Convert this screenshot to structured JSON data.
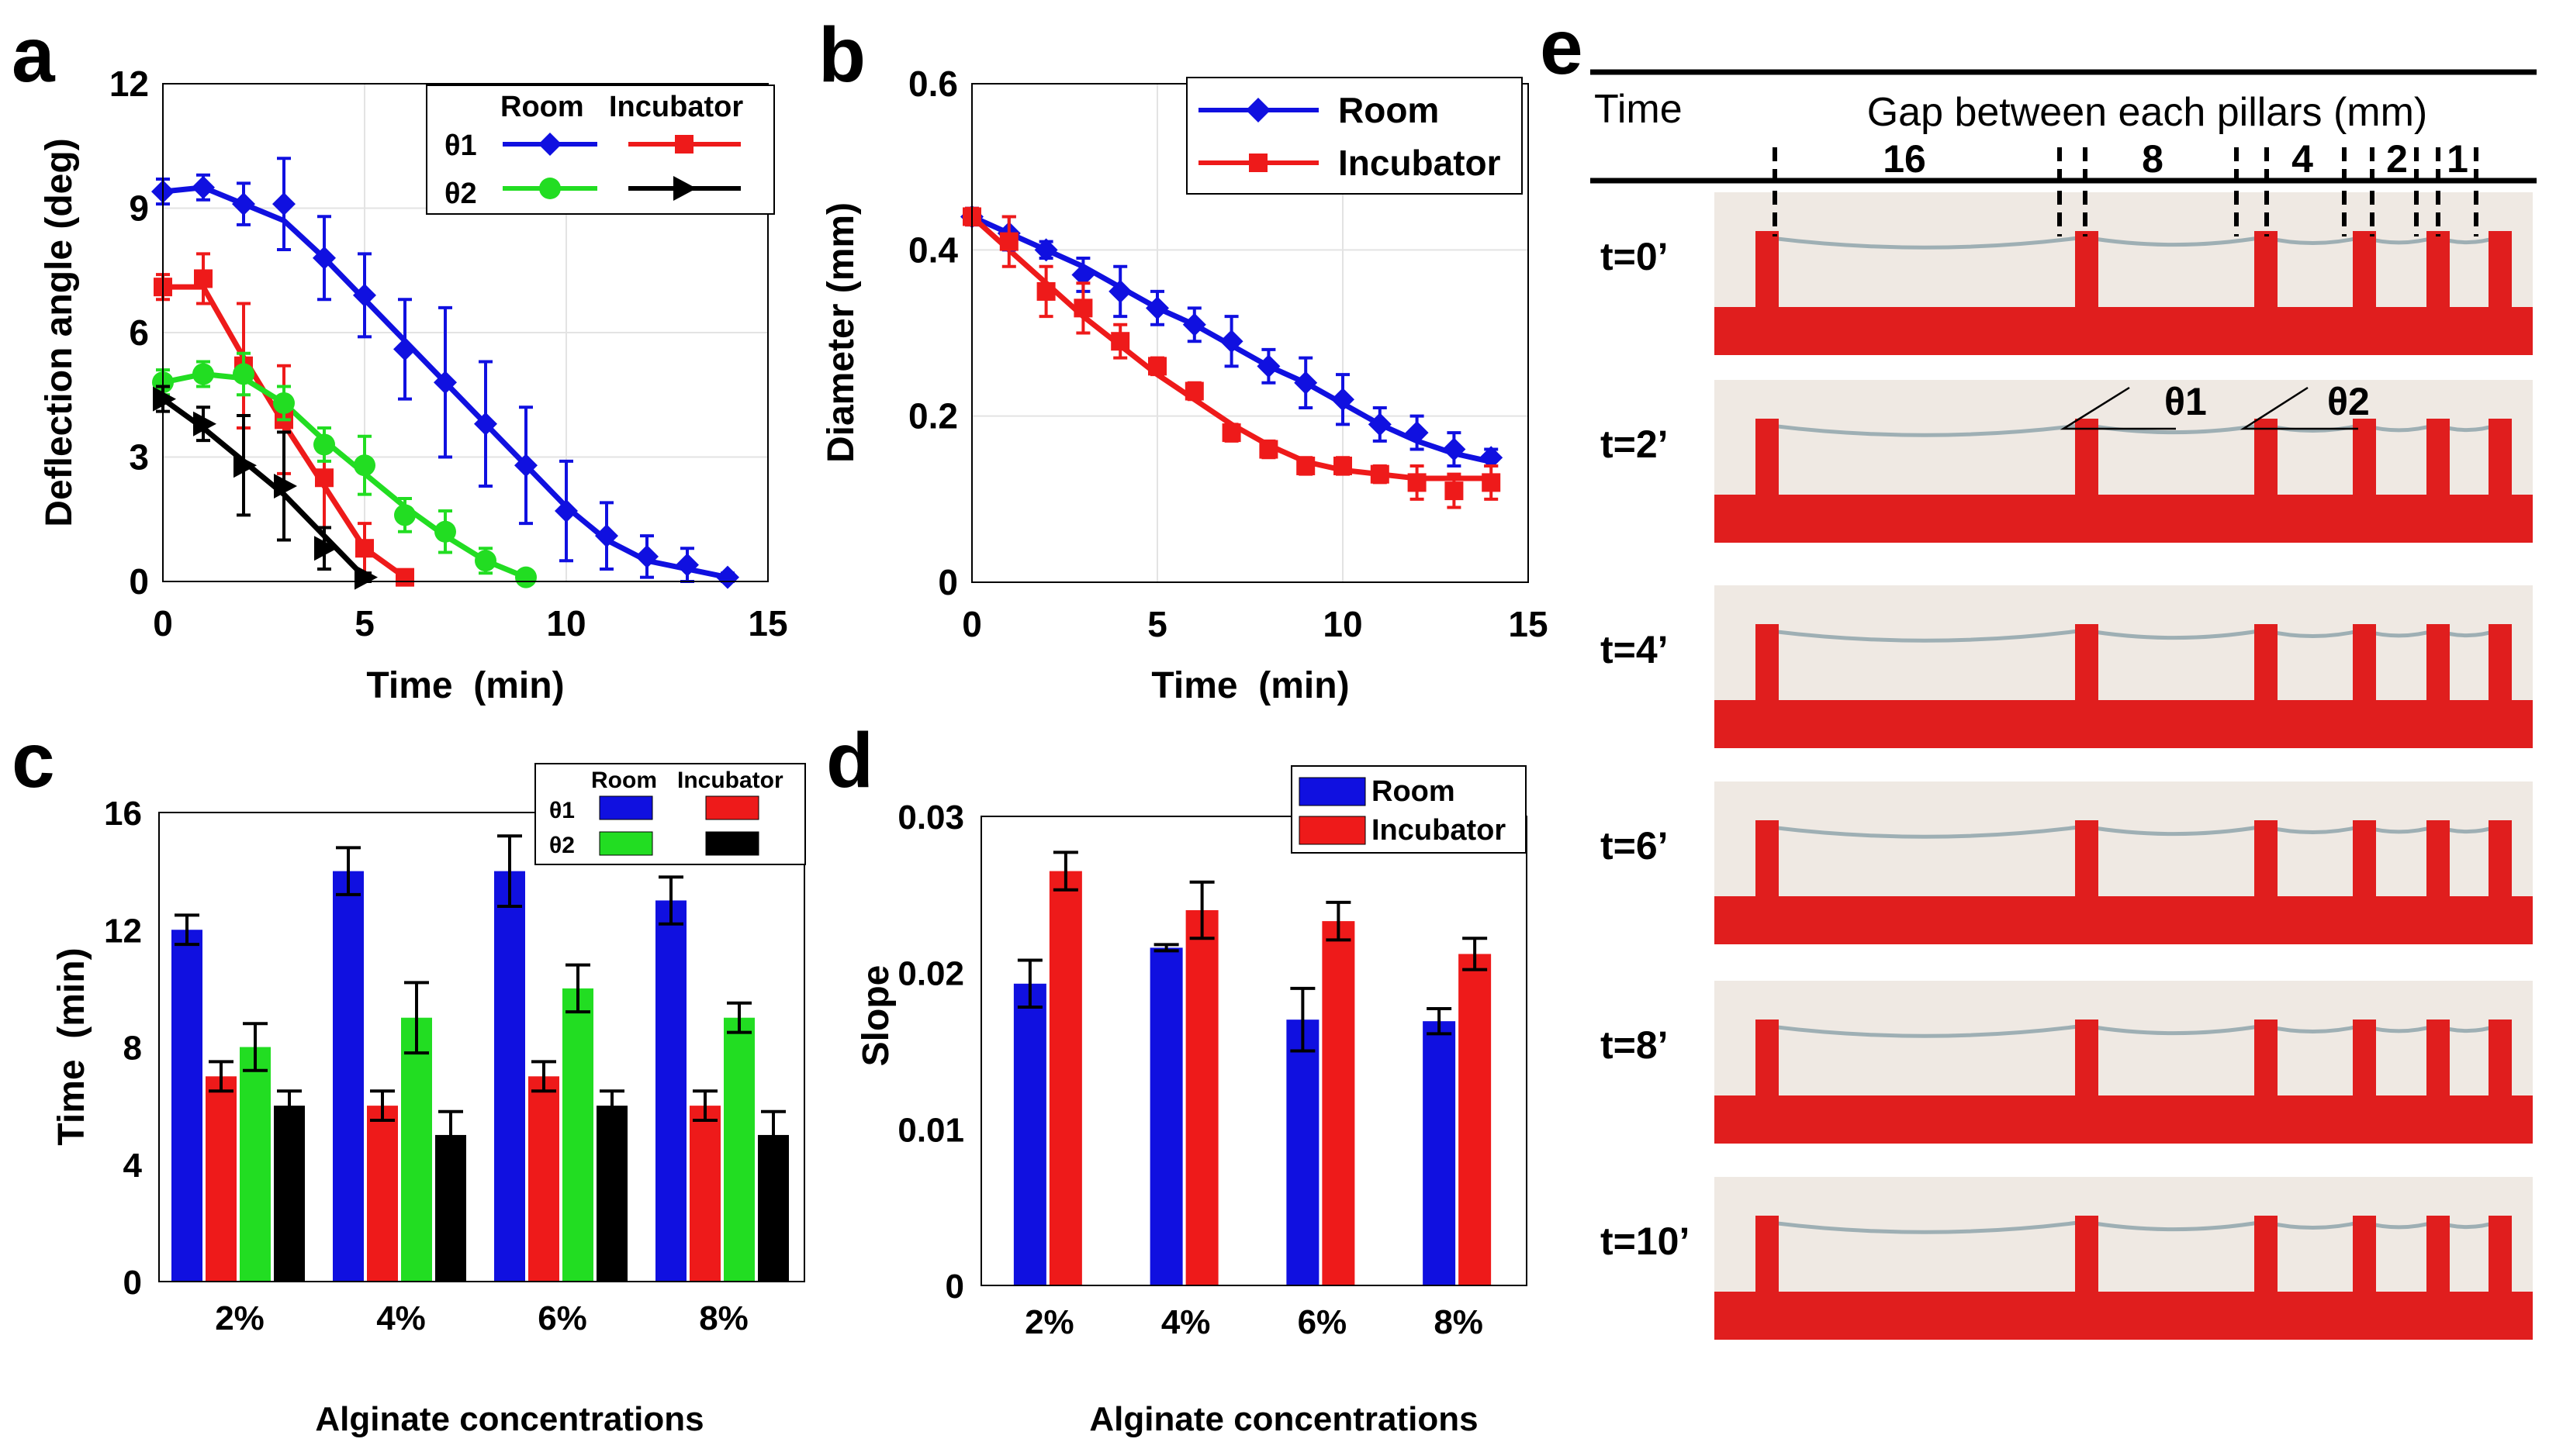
{
  "panel_letters": {
    "a": "a",
    "b": "b",
    "c": "c",
    "d": "d",
    "e": "e"
  },
  "colors": {
    "blue": "#1010e0",
    "red": "#ee1a1a",
    "green": "#22dd22",
    "black": "#000000",
    "pillar": "#e01e1e",
    "photo_bg": "#efe9e3",
    "grid": "#e3e3e3"
  },
  "chart_data": [
    {
      "id": "a",
      "type": "line",
      "ylabel": "Deflection angle (deg)",
      "xlabel": "Time  (min)",
      "xlim": [
        0,
        15
      ],
      "ylim": [
        0,
        12
      ],
      "xticks": [
        "0",
        "5",
        "10",
        "15"
      ],
      "yticks": [
        "0",
        "3",
        "6",
        "9",
        "12"
      ],
      "legend": {
        "col_room": "Room",
        "col_incubator": "Incubator",
        "row_theta1": "θ1",
        "row_theta2": "θ2"
      },
      "series": [
        {
          "name": "θ1 Room",
          "color": "blue",
          "marker": "diamond",
          "x": [
            0,
            1,
            2,
            3,
            4,
            5,
            6,
            7,
            8,
            9,
            10,
            11,
            12,
            13,
            14
          ],
          "y": [
            9.4,
            9.5,
            9.1,
            9.1,
            7.8,
            6.9,
            5.6,
            4.8,
            3.8,
            2.8,
            1.7,
            1.1,
            0.6,
            0.4,
            0.1
          ],
          "err": [
            0.3,
            0.3,
            0.5,
            1.1,
            1.0,
            1.0,
            1.2,
            1.8,
            1.5,
            1.4,
            1.2,
            0.8,
            0.5,
            0.4,
            0.1
          ]
        },
        {
          "name": "θ1 Incubator",
          "color": "red",
          "marker": "square",
          "x": [
            0,
            1,
            2,
            3,
            4,
            5,
            6
          ],
          "y": [
            7.1,
            7.3,
            5.2,
            3.9,
            2.5,
            0.8,
            0.1
          ],
          "err": [
            0.3,
            0.6,
            1.5,
            1.3,
            1.2,
            0.6,
            0.1
          ]
        },
        {
          "name": "θ2 Room",
          "color": "green",
          "marker": "circle",
          "x": [
            0,
            1,
            2,
            3,
            4,
            5,
            6,
            7,
            8,
            9
          ],
          "y": [
            4.8,
            5.0,
            5.0,
            4.3,
            3.3,
            2.8,
            1.6,
            1.2,
            0.5,
            0.1
          ],
          "err": [
            0.3,
            0.3,
            0.5,
            0.4,
            0.4,
            0.7,
            0.4,
            0.5,
            0.3,
            0.1
          ]
        },
        {
          "name": "θ2 Incubator",
          "color": "black",
          "marker": "triangle",
          "x": [
            0,
            1,
            2,
            3,
            4,
            5
          ],
          "y": [
            4.4,
            3.8,
            2.8,
            2.3,
            0.8,
            0.1
          ],
          "err": [
            0.3,
            0.4,
            1.2,
            1.3,
            0.5,
            0.1
          ]
        }
      ],
      "fits": [
        {
          "color": "blue",
          "x": [
            0,
            1,
            2,
            3,
            4,
            5,
            6,
            7,
            8,
            9,
            10,
            11,
            12,
            13,
            14
          ],
          "y": [
            9.4,
            9.5,
            9.1,
            8.7,
            7.8,
            6.8,
            5.8,
            4.8,
            3.8,
            2.8,
            1.8,
            1.0,
            0.5,
            0.3,
            0.1
          ]
        },
        {
          "color": "red",
          "x": [
            0,
            1,
            2,
            3,
            4,
            5,
            6
          ],
          "y": [
            7.1,
            7.1,
            5.4,
            3.8,
            2.3,
            0.8,
            0.1
          ]
        },
        {
          "color": "green",
          "x": [
            0,
            1,
            2,
            3,
            4,
            5,
            6,
            7,
            8,
            9
          ],
          "y": [
            4.8,
            5.0,
            4.9,
            4.3,
            3.4,
            2.6,
            1.8,
            1.1,
            0.5,
            0.1
          ]
        },
        {
          "color": "black",
          "x": [
            0,
            1,
            2,
            3,
            4,
            5
          ],
          "y": [
            4.4,
            3.7,
            2.9,
            2.1,
            1.1,
            0.1
          ]
        }
      ]
    },
    {
      "id": "b",
      "type": "line",
      "ylabel": "Diameter (mm)",
      "xlabel": "Time  (min)",
      "xlim": [
        0,
        15
      ],
      "ylim": [
        0,
        0.6
      ],
      "xticks": [
        "0",
        "5",
        "10",
        "15"
      ],
      "yticks": [
        "0",
        "0.2",
        "0.4",
        "0.6"
      ],
      "legend": {
        "room": "Room",
        "incubator": "Incubator"
      },
      "series": [
        {
          "name": "Room",
          "color": "blue",
          "marker": "diamond",
          "x": [
            0,
            1,
            2,
            3,
            4,
            5,
            6,
            7,
            8,
            9,
            10,
            11,
            12,
            13,
            14
          ],
          "y": [
            0.44,
            0.42,
            0.4,
            0.37,
            0.35,
            0.33,
            0.31,
            0.29,
            0.26,
            0.24,
            0.22,
            0.19,
            0.18,
            0.16,
            0.15
          ],
          "err": [
            0.01,
            0.02,
            0.01,
            0.02,
            0.03,
            0.02,
            0.02,
            0.03,
            0.02,
            0.03,
            0.03,
            0.02,
            0.02,
            0.02,
            0.01
          ]
        },
        {
          "name": "Incubator",
          "color": "red",
          "marker": "square",
          "x": [
            0,
            1,
            2,
            3,
            4,
            5,
            6,
            7,
            8,
            9,
            10,
            11,
            12,
            13,
            14
          ],
          "y": [
            0.44,
            0.41,
            0.35,
            0.33,
            0.29,
            0.26,
            0.23,
            0.18,
            0.16,
            0.14,
            0.14,
            0.13,
            0.12,
            0.11,
            0.12
          ],
          "err": [
            0.01,
            0.03,
            0.03,
            0.03,
            0.02,
            0.01,
            0.01,
            0.01,
            0.01,
            0.01,
            0.01,
            0.01,
            0.02,
            0.02,
            0.02
          ]
        }
      ],
      "fits": [
        {
          "color": "blue",
          "x": [
            0,
            1,
            2,
            3,
            4,
            5,
            6,
            7,
            8,
            9,
            10,
            11,
            12,
            13,
            14
          ],
          "y": [
            0.44,
            0.42,
            0.4,
            0.38,
            0.355,
            0.33,
            0.31,
            0.285,
            0.26,
            0.24,
            0.215,
            0.19,
            0.17,
            0.155,
            0.145
          ]
        },
        {
          "color": "red",
          "x": [
            0,
            1,
            2,
            3,
            4,
            5,
            6,
            7,
            8,
            9,
            10,
            11,
            12,
            13,
            14
          ],
          "y": [
            0.44,
            0.4,
            0.36,
            0.32,
            0.285,
            0.25,
            0.22,
            0.19,
            0.165,
            0.145,
            0.135,
            0.13,
            0.125,
            0.125,
            0.125
          ]
        }
      ]
    },
    {
      "id": "c",
      "type": "bar",
      "ylabel": "Time  (min)",
      "xlabel": "Alginate concentrations",
      "ylim": [
        0,
        16
      ],
      "yticks": [
        "0",
        "4",
        "8",
        "12",
        "16"
      ],
      "categories": [
        "2%",
        "4%",
        "6%",
        "8%"
      ],
      "legend": {
        "col_room": "Room",
        "col_incubator": "Incubator",
        "row_theta1": "θ1",
        "row_theta2": "θ2"
      },
      "series": [
        {
          "name": "θ1 Room",
          "color": "blue",
          "values": [
            12,
            14,
            14,
            13
          ],
          "err": [
            0.5,
            0.8,
            1.2,
            0.8
          ]
        },
        {
          "name": "θ1 Incubator",
          "color": "red",
          "values": [
            7,
            6,
            7,
            6
          ],
          "err": [
            0.5,
            0.5,
            0.5,
            0.5
          ]
        },
        {
          "name": "θ2 Room",
          "color": "green",
          "values": [
            8,
            9,
            10,
            9
          ],
          "err": [
            0.8,
            1.2,
            0.8,
            0.5
          ]
        },
        {
          "name": "θ2 Incubator",
          "color": "black",
          "values": [
            6,
            5,
            6,
            5
          ],
          "err": [
            0.5,
            0.8,
            0.5,
            0.8
          ]
        }
      ]
    },
    {
      "id": "d",
      "type": "bar",
      "ylabel": "Slope",
      "xlabel": "Alginate concentrations",
      "ylim": [
        0,
        0.03
      ],
      "yticks": [
        "0",
        "0.01",
        "0.02",
        "0.03"
      ],
      "categories": [
        "2%",
        "4%",
        "6%",
        "8%"
      ],
      "legend": {
        "room": "Room",
        "incubator": "Incubator"
      },
      "series": [
        {
          "name": "Room",
          "color": "blue",
          "values": [
            0.0193,
            0.0216,
            0.017,
            0.0169
          ],
          "err": [
            0.0015,
            0.0002,
            0.002,
            0.0008
          ]
        },
        {
          "name": "Incubator",
          "color": "red",
          "values": [
            0.0265,
            0.024,
            0.0233,
            0.0212
          ],
          "err": [
            0.0012,
            0.0018,
            0.0012,
            0.001
          ]
        }
      ]
    }
  ],
  "panel_e": {
    "header_time": "Time",
    "header_gap": "Gap between each pillars (mm)",
    "gaps": [
      "16",
      "8",
      "4",
      "2",
      "1"
    ],
    "rows": [
      "t=0’",
      "t=2’",
      "t=4’",
      "t=6’",
      "t=8’",
      "t=10’"
    ],
    "theta1": "θ1",
    "theta2": "θ2"
  }
}
